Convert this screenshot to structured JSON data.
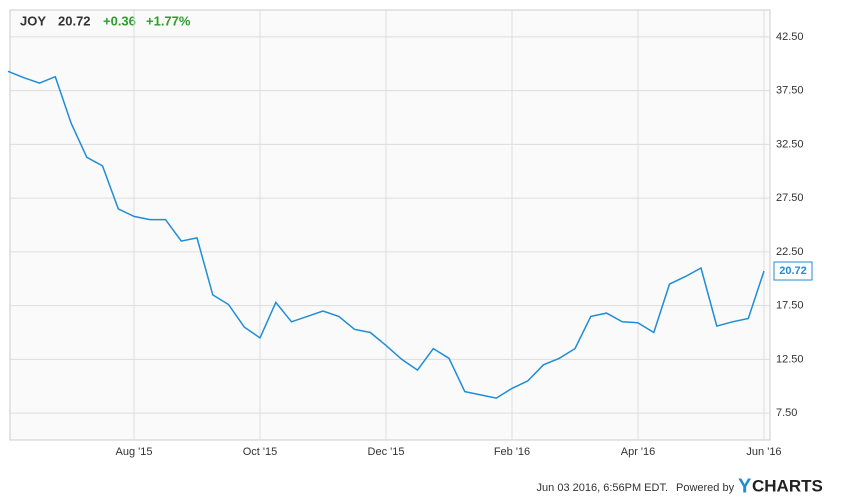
{
  "header": {
    "symbol": "JOY",
    "change": "+0.36",
    "change_pct": "+1.77%"
  },
  "footer": {
    "timestamp": "Jun 03 2016, 6:56PM EDT.",
    "powered": "Powered by",
    "logo_y": "Y",
    "logo_rest": "CHARTS"
  },
  "chart_data": {
    "type": "line",
    "categories": [
      null,
      null,
      null,
      null,
      null,
      null,
      null,
      null,
      "Aug '15",
      null,
      null,
      null,
      null,
      null,
      null,
      null,
      "Oct '15",
      null,
      null,
      null,
      null,
      null,
      null,
      null,
      "Dec '15",
      null,
      null,
      null,
      null,
      null,
      null,
      null,
      "Feb '16",
      null,
      null,
      null,
      null,
      null,
      null,
      null,
      "Apr '16",
      null,
      null,
      null,
      null,
      null,
      null,
      null,
      "Jun '16"
    ],
    "series": [
      {
        "name": "JOY",
        "color": "#1f8dd6",
        "values": [
          39.3,
          38.7,
          38.2,
          38.8,
          34.5,
          31.3,
          30.5,
          26.5,
          25.8,
          25.5,
          25.5,
          23.5,
          23.8,
          18.5,
          17.6,
          15.5,
          14.5,
          17.8,
          16.0,
          16.5,
          17.0,
          16.5,
          15.3,
          15.0,
          13.8,
          12.5,
          11.5,
          13.5,
          12.6,
          9.5,
          9.2,
          8.9,
          9.8,
          10.5,
          12.0,
          12.6,
          13.5,
          16.5,
          16.8,
          16.0,
          15.9,
          15.0,
          19.5,
          20.2,
          21.0,
          15.6,
          16.0,
          16.3,
          20.72
        ]
      }
    ],
    "ylim": [
      5,
      45
    ],
    "yticks": [
      {
        "value": 7.5,
        "label": "7.50"
      },
      {
        "value": 12.5,
        "label": "12.50"
      },
      {
        "value": 17.5,
        "label": "17.50"
      },
      {
        "value": 22.5,
        "label": "22.50"
      },
      {
        "value": 27.5,
        "label": "27.50"
      },
      {
        "value": 32.5,
        "label": "32.50"
      },
      {
        "value": 37.5,
        "label": "37.50"
      },
      {
        "value": 42.5,
        "label": "42.50"
      }
    ],
    "grid": true
  }
}
